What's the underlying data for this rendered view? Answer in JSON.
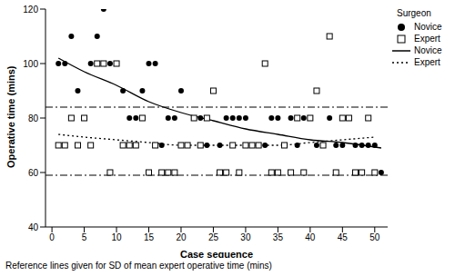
{
  "chart_data": {
    "type": "scatter",
    "x_label": "Case sequence",
    "y_label": "Operative time (mins)",
    "legend_title": "Surgeon",
    "footnote": "Reference lines given for SD of mean expert operative time (mins)",
    "xlim": [
      -1,
      52
    ],
    "xticks": [
      0,
      5,
      10,
      15,
      20,
      25,
      30,
      35,
      40,
      45,
      50
    ],
    "ylim": [
      40,
      120
    ],
    "yticks": [
      40,
      60,
      80,
      100,
      120
    ],
    "grid": false,
    "legend": "upper right",
    "reference_lines": [
      84,
      59
    ],
    "series": [
      {
        "name": "Novice",
        "type": "scatter",
        "marker": "circle",
        "color": "#000000",
        "x": [
          1,
          2,
          3,
          4,
          5,
          6,
          7,
          8,
          9,
          10,
          11,
          12,
          13,
          14,
          15,
          16,
          17,
          18,
          19,
          20,
          21,
          22,
          23,
          24,
          26,
          27,
          28,
          29,
          30,
          31,
          32,
          33,
          34,
          35,
          36,
          37,
          38,
          39,
          40,
          41,
          42,
          43,
          44,
          45,
          46,
          47,
          48,
          49,
          50,
          51
        ],
        "values": [
          100,
          100,
          110,
          90,
          80,
          100,
          110,
          120,
          100,
          100,
          90,
          80,
          80,
          90,
          100,
          100,
          70,
          80,
          80,
          90,
          70,
          80,
          80,
          70,
          70,
          80,
          80,
          80,
          80,
          70,
          70,
          70,
          80,
          80,
          70,
          80,
          70,
          80,
          80,
          70,
          70,
          80,
          70,
          70,
          80,
          70,
          70,
          70,
          70,
          60
        ]
      },
      {
        "name": "Expert",
        "type": "scatter",
        "marker": "square",
        "color": "#000000",
        "x": [
          1,
          2,
          3,
          4,
          5,
          6,
          7,
          8,
          9,
          10,
          11,
          12,
          13,
          14,
          15,
          16,
          17,
          18,
          19,
          20,
          21,
          22,
          23,
          24,
          25,
          26,
          27,
          28,
          29,
          30,
          31,
          32,
          33,
          34,
          35,
          36,
          37,
          38,
          39,
          40,
          41,
          42,
          43,
          44,
          45,
          46,
          47,
          48,
          49,
          50
        ],
        "values": [
          70,
          70,
          80,
          70,
          80,
          70,
          100,
          100,
          60,
          100,
          70,
          70,
          70,
          80,
          60,
          70,
          60,
          60,
          60,
          70,
          70,
          80,
          70,
          80,
          90,
          60,
          60,
          70,
          60,
          70,
          70,
          70,
          100,
          60,
          60,
          70,
          60,
          80,
          60,
          80,
          90,
          70,
          110,
          60,
          80,
          80,
          60,
          60,
          80,
          60
        ]
      },
      {
        "name": "Novice",
        "type": "line",
        "line_style": "solid",
        "color": "#000000",
        "x": [
          1,
          5,
          10,
          15,
          20,
          25,
          30,
          35,
          40,
          45,
          51
        ],
        "values": [
          102,
          97,
          92,
          86,
          82,
          79,
          76,
          74,
          72,
          71,
          69
        ]
      },
      {
        "name": "Expert",
        "type": "line",
        "line_style": "dotted",
        "color": "#000000",
        "x": [
          1,
          5,
          10,
          15,
          20,
          25,
          30,
          35,
          40,
          45,
          50
        ],
        "values": [
          74,
          73,
          72,
          71,
          70,
          70,
          70,
          70,
          71,
          72,
          73
        ]
      }
    ]
  }
}
